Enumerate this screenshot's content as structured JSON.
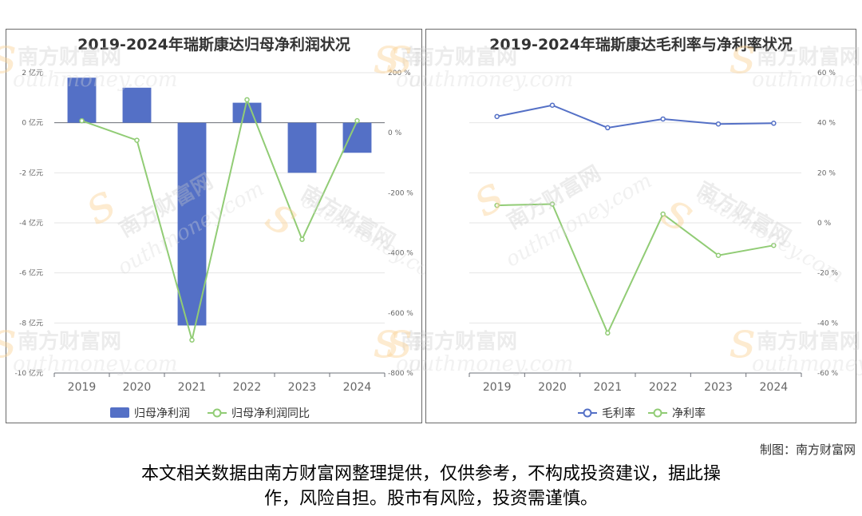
{
  "chart_data": [
    {
      "type": "bar+line",
      "title": "2019-2024年瑞斯康达归母净利润状况",
      "categories": [
        "2019",
        "2020",
        "2021",
        "2022",
        "2023",
        "2024"
      ],
      "series": [
        {
          "name": "归母净利润",
          "type": "bar",
          "axis": "left",
          "unit": "亿元",
          "values": [
            1.8,
            1.4,
            -8.1,
            0.8,
            -2.0,
            -1.2
          ]
        },
        {
          "name": "归母净利润同比",
          "type": "line",
          "axis": "right",
          "unit": "%",
          "values": [
            40,
            -25,
            -690,
            110,
            -355,
            40
          ]
        }
      ],
      "y_left": {
        "min": -10,
        "max": 2,
        "step": 2,
        "ticks": [
          "2 亿元",
          "0 亿元",
          "-2 亿元",
          "-4 亿元",
          "-6 亿元",
          "-8 亿元",
          "-10 亿元"
        ]
      },
      "y_right": {
        "min": -800,
        "max": 200,
        "step": 200,
        "ticks": [
          "200 %",
          "0 %",
          "-200 %",
          "-400 %",
          "-600 %",
          "-800 %"
        ]
      },
      "colors": {
        "bar": "#5470c6",
        "line": "#91cc75"
      },
      "grid": true,
      "legend": "bottom-center"
    },
    {
      "type": "line",
      "title": "2019-2024年瑞斯康达毛利率与净利率状况",
      "categories": [
        "2019",
        "2020",
        "2021",
        "2022",
        "2023",
        "2024"
      ],
      "series": [
        {
          "name": "毛利率",
          "unit": "%",
          "values": [
            42.5,
            47,
            38,
            41.5,
            39.5,
            39.8
          ]
        },
        {
          "name": "净利率",
          "unit": "%",
          "values": [
            7,
            7.5,
            -44,
            3.5,
            -13,
            -9
          ]
        }
      ],
      "y_right": {
        "min": -60,
        "max": 60,
        "step": 20,
        "ticks": [
          "60 %",
          "40 %",
          "20 %",
          "0 %",
          "-20 %",
          "-40 %",
          "-60 %"
        ]
      },
      "colors": {
        "gross": "#5470c6",
        "net": "#91cc75"
      },
      "grid": true,
      "legend": "bottom-center"
    }
  ],
  "watermark": {
    "cn": "南方财富网",
    "en": "southmoney.com"
  },
  "credit": "制图：南方财富网",
  "disclaimer": [
    "本文相关数据由南方财富网整理提供，仅供参考，不构成投资建议，据此操",
    "作，风险自担。股市有风险，投资需谨慎。"
  ]
}
